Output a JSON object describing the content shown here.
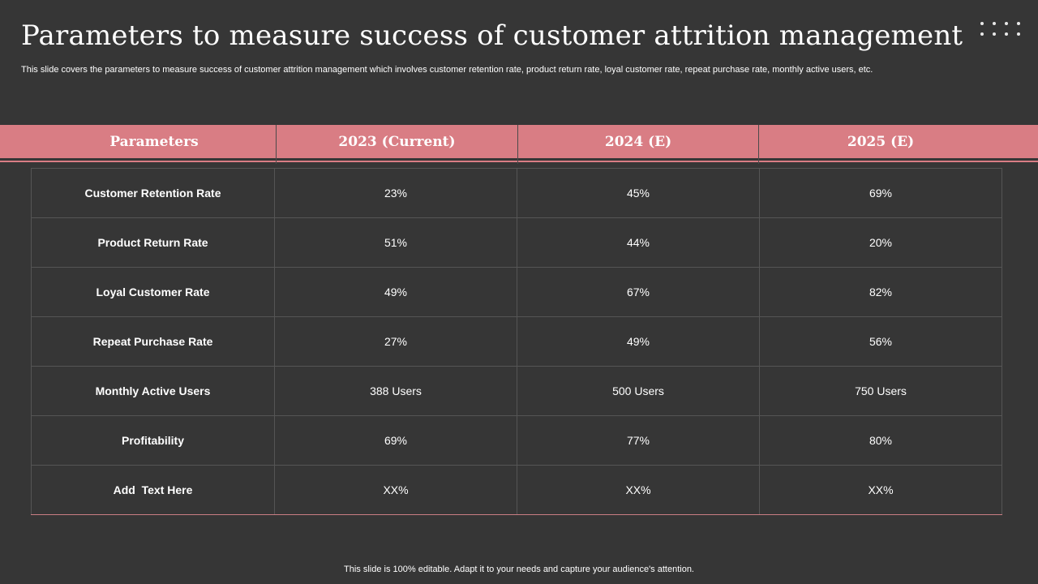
{
  "title": "Parameters to measure success of customer attrition management",
  "subtitle": "This slide covers the parameters to measure success of customer attrition management which involves customer retention rate, product return rate, loyal customer rate, repeat purchase rate, monthly active users, etc.",
  "table": {
    "headers": [
      "Parameters",
      "2023 (Current)",
      "2024 (E)",
      "2025 (E)"
    ],
    "rows": [
      [
        "Customer Retention Rate",
        "23%",
        "45%",
        "69%"
      ],
      [
        "Product Return Rate",
        "51%",
        "44%",
        "20%"
      ],
      [
        "Loyal Customer Rate",
        "49%",
        "67%",
        "82%"
      ],
      [
        "Repeat Purchase Rate",
        "27%",
        "49%",
        "56%"
      ],
      [
        "Monthly Active Users",
        "388 Users",
        "500 Users",
        "750 Users"
      ],
      [
        "Profitability",
        "69%",
        "77%",
        "80%"
      ],
      [
        "Add  Text Here",
        "XX%",
        "XX%",
        "XX%"
      ]
    ]
  },
  "footer": "This slide is 100% editable. Adapt it to your needs and capture your audience's attention.",
  "colors": {
    "background": "#363636",
    "accent": "#d97d84",
    "grid_line": "#555555"
  },
  "icons": {
    "top_right": "dot-grid-icon"
  }
}
